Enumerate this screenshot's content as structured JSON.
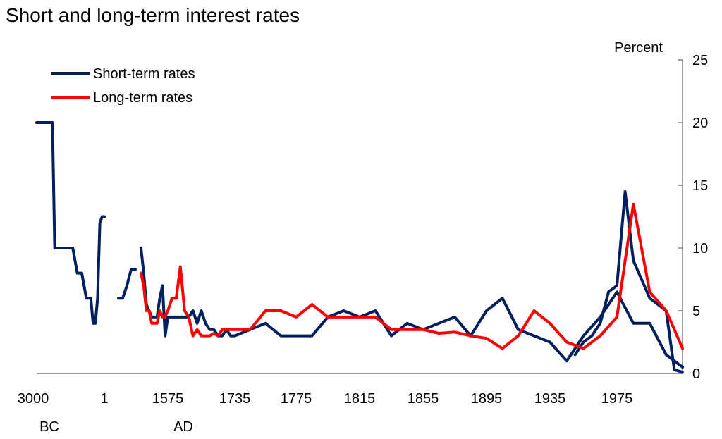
{
  "chart_data": {
    "type": "line",
    "title": "Short and long-term interest rates",
    "ylabel": "Percent",
    "ylim": [
      0,
      25
    ],
    "yticks": [
      0,
      5,
      10,
      15,
      20,
      25
    ],
    "x_tick_labels": [
      "3000",
      "1",
      "1575",
      "1735",
      "1775",
      "1815",
      "1855",
      "1895",
      "1935",
      "1975"
    ],
    "era_labels": [
      "BC",
      "AD"
    ],
    "legend_position": "top-left",
    "grid": false,
    "series": [
      {
        "name": "Short-term rates",
        "color": "#002060",
        "segments": [
          {
            "x": [
              -3000,
              -2500,
              -2400,
              -2300,
              -2200,
              -2100,
              -2000,
              -1800,
              -1600,
              -1400,
              -1200,
              -1000,
              -800,
              -600,
              -500,
              -400,
              -300,
              -200,
              -100,
              0,
              50,
              100,
              200,
              300,
              400,
              500
            ],
            "y": [
              20,
              20,
              20,
              20,
              10,
              10,
              10,
              10,
              10,
              10,
              8,
              8,
              6,
              6,
              4,
              4,
              6,
              12,
              12.5,
              12.5,
              null,
              null,
              null,
              null,
              null,
              null
            ]
          },
          {
            "x": [
              300,
              400,
              500,
              600,
              700
            ],
            "y": [
              6,
              6,
              7,
              8.3,
              8.3
            ]
          },
          {
            "x": [
              1475,
              1485,
              1495,
              1505,
              1515,
              1525,
              1535,
              1545,
              1555,
              1565,
              1575,
              1585,
              1595,
              1605,
              1615,
              1625,
              1635,
              1645,
              1655,
              1665,
              1675,
              1685,
              1695,
              1705,
              1715,
              1725,
              1735,
              1745,
              1755,
              1765,
              1775,
              1785,
              1795,
              1805,
              1815,
              1825,
              1835,
              1845,
              1855,
              1865,
              1875,
              1885,
              1895,
              1905,
              1915,
              1925,
              1935,
              1945,
              1955,
              1965,
              1975,
              1985,
              1995,
              2005,
              2015
            ],
            "y": [
              10,
              8,
              5.5,
              5,
              4.5,
              4.5,
              4.5,
              6,
              7,
              3,
              4.5,
              4.5,
              4.5,
              4.5,
              4.5,
              4.5,
              5,
              4,
              5,
              4,
              3.5,
              3.5,
              3,
              3,
              3.5,
              3,
              3,
              3.5,
              4,
              3,
              3,
              3,
              4.5,
              5,
              4.5,
              5,
              3,
              4,
              3.5,
              4,
              4.5,
              3,
              5,
              6,
              3.5,
              3,
              2.5,
              1,
              3,
              4.5,
              6.5,
              4,
              4,
              1.5,
              0.5
            ]
          },
          {
            "x": [
              1950,
              1955,
              1960,
              1965,
              1970,
              1975,
              1980,
              1985,
              1990,
              1995,
              2000,
              2005,
              2010,
              2015
            ],
            "y": [
              1.5,
              2.5,
              3,
              4,
              6.5,
              7,
              14.5,
              9,
              7.5,
              6,
              5.5,
              5,
              0.3,
              0.1
            ]
          }
        ]
      },
      {
        "name": "Long-term rates",
        "color": "#FF0000",
        "segments": [
          {
            "x": [
              1475,
              1485,
              1495,
              1505,
              1515,
              1525,
              1535,
              1545,
              1555,
              1565,
              1575,
              1585,
              1595,
              1605,
              1615,
              1625,
              1635,
              1645,
              1655,
              1665,
              1675,
              1685,
              1695,
              1705,
              1715,
              1725,
              1735,
              1745,
              1755,
              1765,
              1775,
              1785,
              1795,
              1805,
              1815,
              1825,
              1835,
              1845,
              1855,
              1865,
              1875,
              1885,
              1895,
              1905,
              1915,
              1925,
              1935,
              1945,
              1955,
              1965,
              1975,
              1985,
              1995,
              2005,
              2015
            ],
            "y": [
              8,
              7,
              5,
              5,
              4,
              4,
              4,
              5,
              4.5,
              4.5,
              5,
              6,
              6,
              8.5,
              5,
              4.5,
              3,
              3.5,
              3,
              3,
              3,
              3.2,
              3,
              3.5,
              3.5,
              3.5,
              3.5,
              3.5,
              5,
              5,
              4.5,
              5.5,
              4.5,
              4.5,
              4.5,
              4.5,
              3.5,
              3.5,
              3.5,
              3.2,
              3.3,
              3,
              2.8,
              2,
              3,
              5,
              4,
              2.5,
              2,
              3,
              4.5,
              13.5,
              6.5,
              5,
              2
            ]
          }
        ]
      }
    ]
  }
}
